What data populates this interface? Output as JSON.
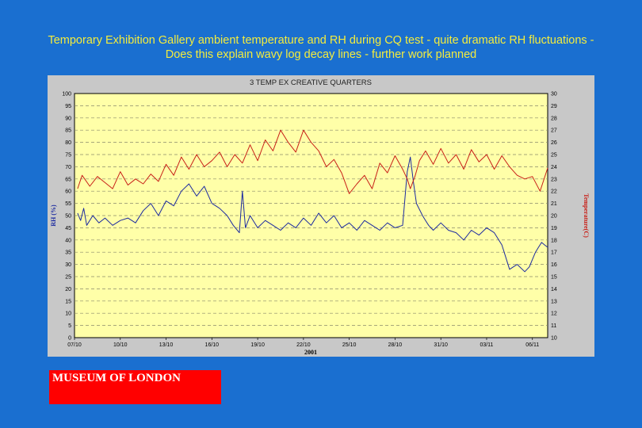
{
  "slide": {
    "title": "Temporary Exhibition Gallery ambient temperature and RH during CQ test - quite dramatic RH fluctuations - Does this explain wavy log decay lines - further work planned"
  },
  "logo": {
    "text": "MUSEUM OF LONDON"
  },
  "colors": {
    "background": "#1a6fd0",
    "title_text": "#f4ec3c",
    "plot_area": "#ffffa8",
    "frame": "#c8c8c8",
    "rh_series": "#1c2aa0",
    "temp_series": "#c82018",
    "logo_box": "#ff0000"
  },
  "chart_data": {
    "type": "line",
    "title": "3 TEMP EX CREATIVE QUARTERS",
    "xlabel": "2001",
    "ylabel_left": "RH (%)",
    "ylabel_right": "Temperature(C)",
    "x_ticks": [
      "07/10",
      "10/10",
      "13/10",
      "16/10",
      "19/10",
      "22/10",
      "25/10",
      "28/10",
      "31/10",
      "03/11",
      "06/11"
    ],
    "x_range_days": [
      0,
      31
    ],
    "y_left_range": [
      0,
      100
    ],
    "y_left_ticks": [
      0,
      5,
      10,
      15,
      20,
      25,
      30,
      35,
      40,
      45,
      50,
      55,
      60,
      65,
      70,
      75,
      80,
      85,
      90,
      95,
      100
    ],
    "y_right_range": [
      10,
      30
    ],
    "y_right_ticks": [
      10,
      11,
      12,
      13,
      14,
      15,
      16,
      17,
      18,
      19,
      20,
      21,
      22,
      23,
      24,
      25,
      26,
      27,
      28,
      29,
      30
    ],
    "grid": "horizontal dashed",
    "series": [
      {
        "name": "RH (%)",
        "axis": "left",
        "x": [
          0.2,
          0.4,
          0.6,
          0.8,
          1.2,
          1.6,
          2.0,
          2.5,
          3.0,
          3.5,
          4.0,
          4.5,
          5.0,
          5.5,
          6.0,
          6.5,
          7.0,
          7.5,
          8.0,
          8.5,
          9.0,
          9.5,
          10.0,
          10.4,
          10.8,
          11.0,
          11.2,
          11.5,
          12.0,
          12.5,
          13.0,
          13.5,
          14.0,
          14.5,
          15.0,
          15.5,
          16.0,
          16.5,
          17.0,
          17.5,
          18.0,
          18.5,
          19.0,
          19.5,
          20.0,
          20.5,
          21.0,
          21.5,
          21.8,
          22.0,
          22.2,
          22.4,
          22.8,
          23.0,
          23.2,
          23.5,
          24.0,
          24.5,
          25.0,
          25.5,
          26.0,
          26.5,
          27.0,
          27.5,
          28.0,
          28.5,
          29.0,
          29.5,
          29.8,
          30.0,
          30.2,
          30.4,
          30.6,
          30.8,
          31.0
        ],
        "values": [
          51,
          48,
          53,
          46,
          50,
          47,
          49,
          46,
          48,
          49,
          47,
          52,
          55,
          50,
          56,
          54,
          60,
          63,
          58,
          62,
          55,
          53,
          50,
          46,
          43,
          60,
          45,
          50,
          45,
          48,
          46,
          44,
          47,
          45,
          49,
          46,
          51,
          47,
          50,
          45,
          47,
          44,
          48,
          46,
          44,
          47,
          45,
          46,
          68,
          74,
          64,
          55,
          50,
          48,
          46,
          44,
          47,
          44,
          43,
          40,
          44,
          42,
          45,
          43,
          38,
          28,
          30,
          27,
          29,
          32,
          35,
          37,
          39,
          38,
          37
        ]
      },
      {
        "name": "Temperature(C)",
        "axis": "right",
        "x": [
          0.2,
          0.5,
          1.0,
          1.5,
          2.0,
          2.5,
          3.0,
          3.5,
          4.0,
          4.5,
          5.0,
          5.5,
          6.0,
          6.5,
          7.0,
          7.5,
          8.0,
          8.5,
          9.0,
          9.5,
          10.0,
          10.5,
          11.0,
          11.5,
          12.0,
          12.5,
          13.0,
          13.5,
          14.0,
          14.5,
          15.0,
          15.5,
          16.0,
          16.5,
          17.0,
          17.5,
          18.0,
          18.5,
          19.0,
          19.5,
          20.0,
          20.5,
          21.0,
          21.5,
          21.8,
          22.0,
          22.3,
          22.6,
          23.0,
          23.5,
          24.0,
          24.5,
          25.0,
          25.5,
          26.0,
          26.5,
          27.0,
          27.5,
          28.0,
          28.5,
          29.0,
          29.5,
          30.0,
          30.5,
          31.0
        ],
        "values": [
          22.2,
          23.3,
          22.4,
          23.2,
          22.7,
          22.2,
          23.6,
          22.5,
          23.0,
          22.6,
          23.4,
          22.8,
          24.2,
          23.3,
          24.8,
          23.8,
          25.0,
          24.0,
          24.5,
          25.2,
          24.0,
          25.0,
          24.3,
          25.8,
          24.5,
          26.2,
          25.3,
          27.0,
          26.0,
          25.2,
          27.0,
          26.0,
          25.3,
          24.0,
          24.6,
          23.5,
          21.8,
          22.6,
          23.3,
          22.2,
          24.3,
          23.5,
          24.9,
          23.8,
          23.0,
          22.2,
          23.2,
          24.5,
          25.3,
          24.2,
          25.5,
          24.3,
          25.0,
          23.8,
          25.4,
          24.4,
          25.0,
          23.8,
          24.9,
          24.0,
          23.3,
          23.0,
          23.2,
          22.0,
          23.9
        ]
      }
    ]
  }
}
